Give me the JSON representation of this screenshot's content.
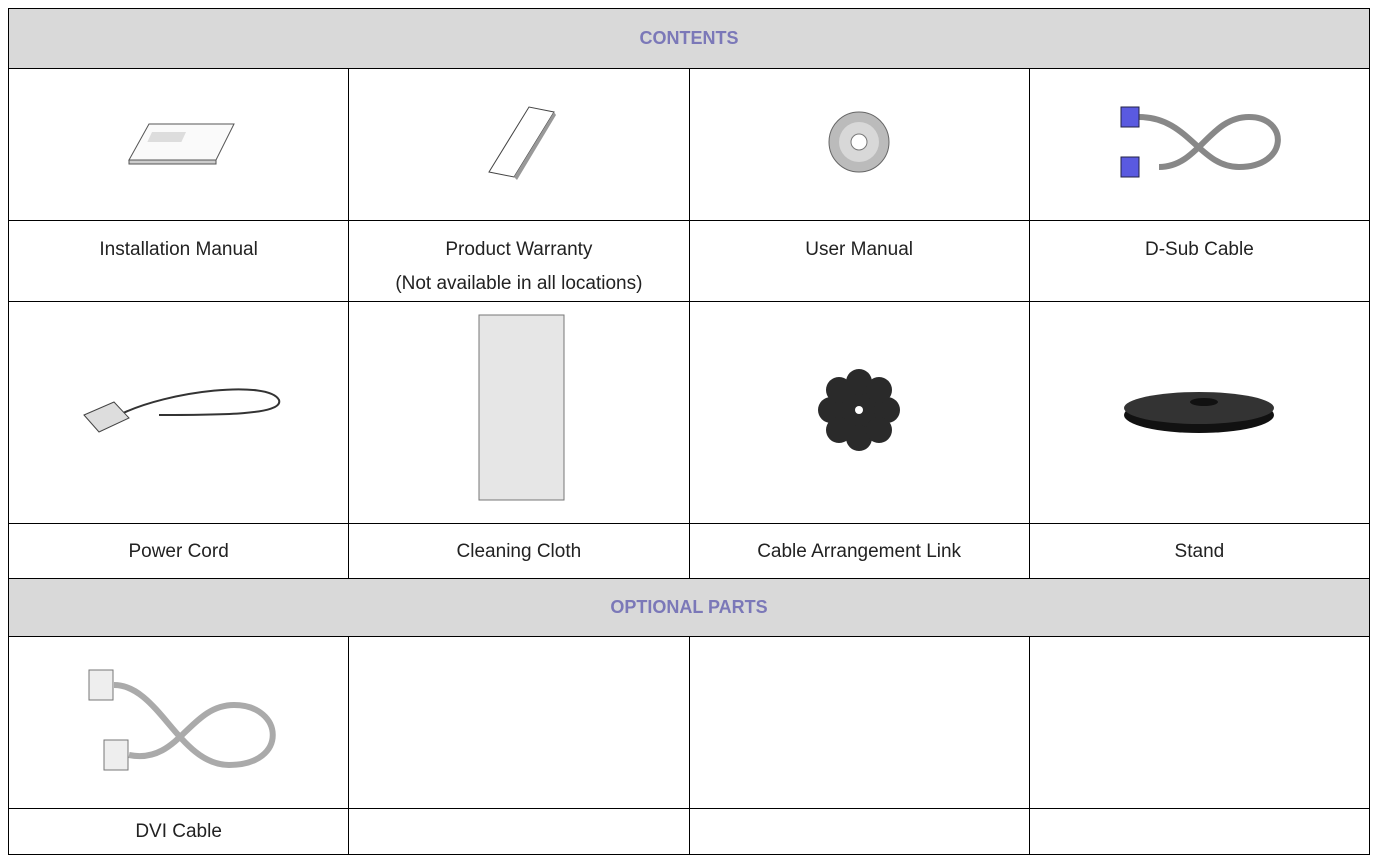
{
  "contents": {
    "title": "CONTENTS",
    "items": [
      {
        "label": "Installation Manual"
      },
      {
        "label": "Product Warranty",
        "note": "(Not available in all locations)"
      },
      {
        "label": "User Manual"
      },
      {
        "label": "D-Sub Cable"
      },
      {
        "label": "Power Cord"
      },
      {
        "label": "Cleaning Cloth"
      },
      {
        "label": "Cable Arrangement Link"
      },
      {
        "label": "Stand"
      }
    ]
  },
  "optional_parts": {
    "title": "OPTIONAL PARTS",
    "items": [
      {
        "label": "DVI Cable"
      }
    ]
  }
}
